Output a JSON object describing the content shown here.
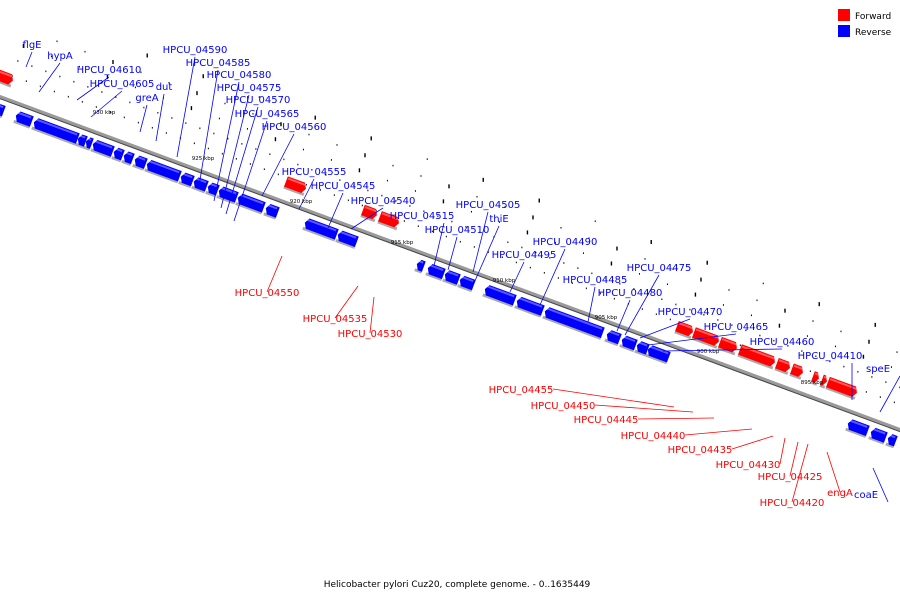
{
  "caption": "Helicobacter pylori Cuz20, complete genome. - 0..1635449",
  "legend": [
    {
      "name": "Forward",
      "color": "#ff0000"
    },
    {
      "name": "Reverse",
      "color": "#0000ff"
    }
  ],
  "colors": {
    "forward": "#ff0000",
    "reverse": "#0000ff",
    "backbone": "#999999"
  },
  "kbp_ticks": [
    "930 kbp",
    "925 kbp",
    "920 kbp",
    "915 kbp",
    "910 kbp",
    "905 kbp",
    "900 kbp",
    "895 kbp"
  ],
  "reverse_genes": [
    "flgE",
    "hypA",
    "HPCU_04610",
    "HPCU_04605",
    "greA",
    "dut",
    "HPCU_04590",
    "HPCU_04585",
    "HPCU_04580",
    "HPCU_04575",
    "HPCU_04570",
    "HPCU_04565",
    "HPCU_04560",
    "HPCU_04555",
    "HPCU_04545",
    "HPCU_04540",
    "HPCU_04515",
    "HPCU_04510",
    "HPCU_04505",
    "thiE",
    "HPCU_04495",
    "HPCU_04490",
    "HPCU_04485",
    "HPCU_04480",
    "HPCU_04475",
    "HPCU_04470",
    "HPCU_04465",
    "HPCU_04460",
    "HPCU_04410",
    "speE",
    "coaE"
  ],
  "forward_genes": [
    "HPCU_04550",
    "HPCU_04535",
    "HPCU_04530",
    "HPCU_04455",
    "HPCU_04450",
    "HPCU_04445",
    "HPCU_04440",
    "HPCU_04435",
    "HPCU_04430",
    "HPCU_04425",
    "HPCU_04420",
    "engA"
  ]
}
